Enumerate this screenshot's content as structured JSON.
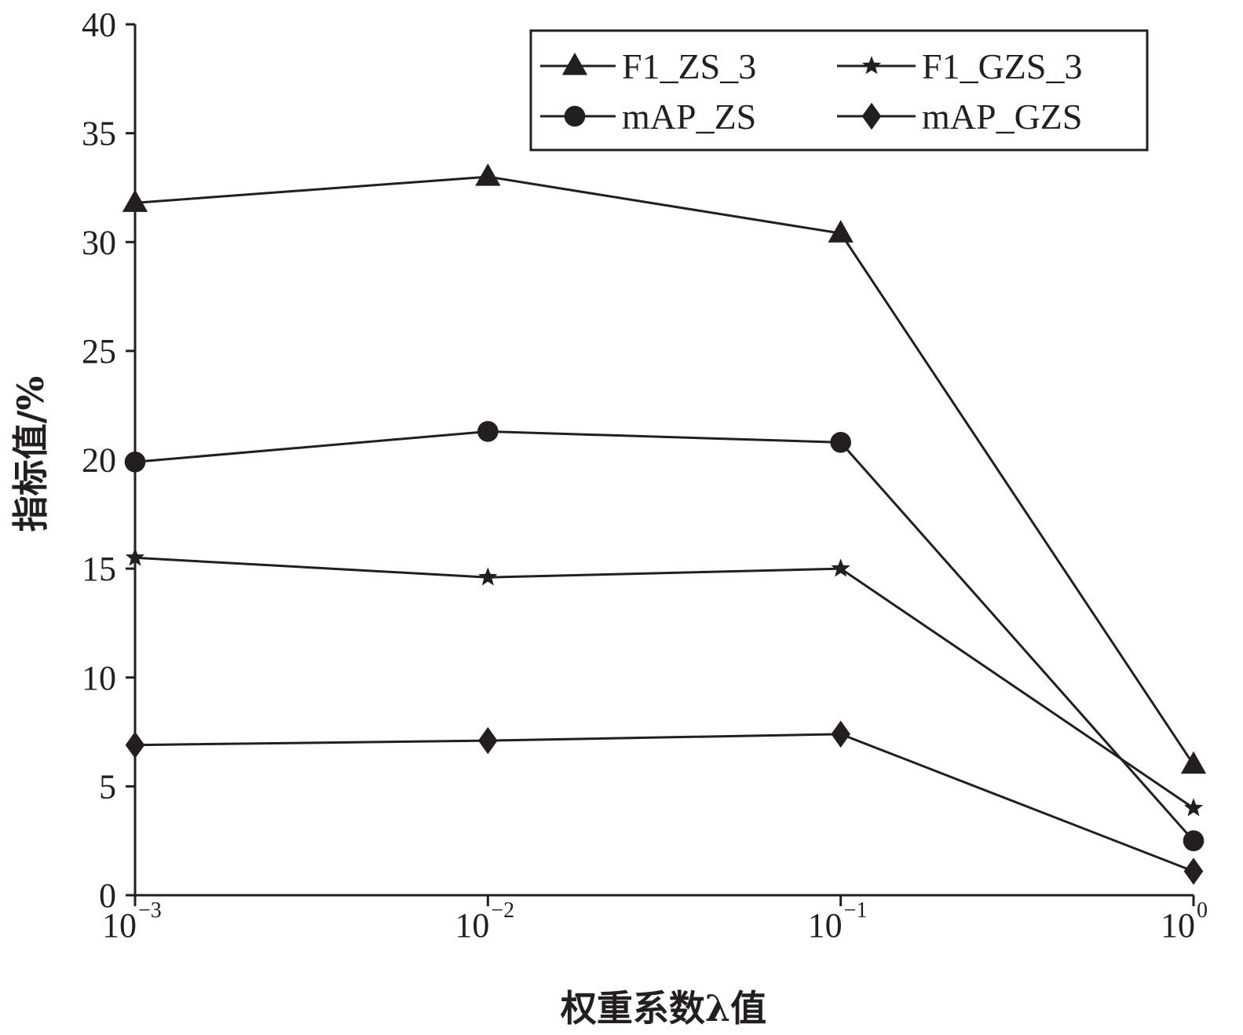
{
  "chart_data": {
    "type": "line",
    "xlabel": "权重系数λ值",
    "ylabel": "指标值/%",
    "x_scale": "log",
    "x": [
      "10^-3",
      "10^-2",
      "10^-1",
      "10^0"
    ],
    "x_ticks": [
      {
        "base": "10",
        "exp": "−3"
      },
      {
        "base": "10",
        "exp": "−2"
      },
      {
        "base": "10",
        "exp": "−1"
      },
      {
        "base": "10",
        "exp": "0"
      }
    ],
    "y_ticks": [
      "0",
      "5",
      "10",
      "15",
      "20",
      "25",
      "30",
      "35",
      "40"
    ],
    "ylim": [
      0,
      40
    ],
    "grid": false,
    "legend_position": "top-right",
    "series": [
      {
        "name": "F1_ZS_3",
        "marker": "triangle",
        "values": [
          31.8,
          33.0,
          30.4,
          6.0
        ]
      },
      {
        "name": "F1_GZS_3",
        "marker": "star",
        "values": [
          15.5,
          14.6,
          15.0,
          4.0
        ]
      },
      {
        "name": "mAP_ZS",
        "marker": "circle",
        "values": [
          19.9,
          21.3,
          20.8,
          2.5
        ]
      },
      {
        "name": "mAP_GZS",
        "marker": "diamond",
        "values": [
          6.9,
          7.1,
          7.4,
          1.1
        ]
      }
    ],
    "line_color": "#231f20"
  }
}
